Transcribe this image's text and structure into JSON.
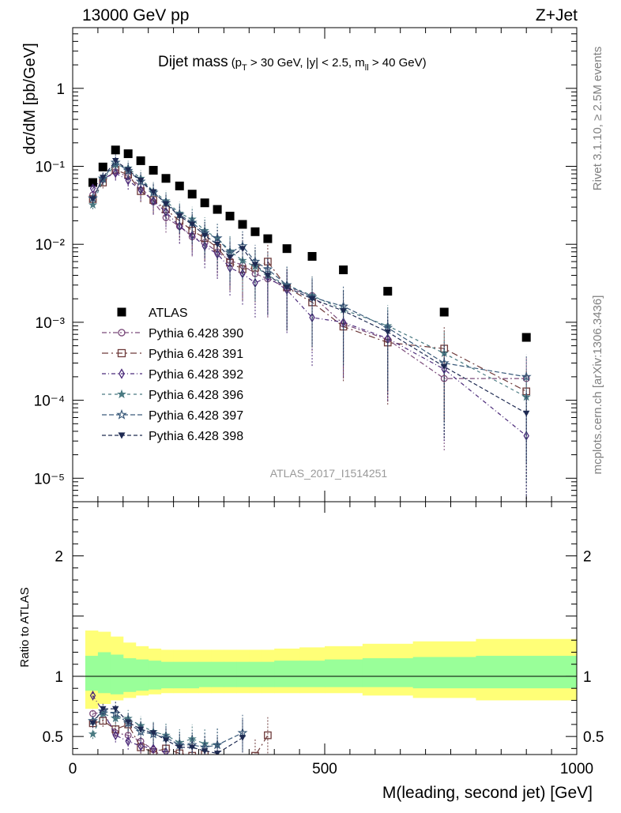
{
  "header": {
    "left": "13000 GeV pp",
    "right": "Z+Jet"
  },
  "side_labels": {
    "rivet": "Rivet 3.1.10, ≥ 2.5M events",
    "mcplots": "mcplots.cern.ch [arXiv:1306.3436]"
  },
  "title": {
    "main": "Dijet mass",
    "cond_open": "(p",
    "cond_sub1": "T",
    "cond_mid": " > 30 GeV, |y| < 2.5, m",
    "cond_sub2": "ll",
    "cond_end": " > 40 GeV)"
  },
  "watermark": "ATLAS_2017_I1514251",
  "chart_data": [
    {
      "type": "scatter",
      "panel": "main",
      "ylabel": "dσ/dM [pb/GeV]",
      "yscale": "log",
      "xlim": [
        0,
        1000
      ],
      "ylim": [
        5e-06,
        6
      ],
      "y_tick_labels": [
        "10⁻⁵",
        "10⁻⁴",
        "10⁻³",
        "10⁻²",
        "10⁻¹",
        "1"
      ],
      "legend_position": "center-left",
      "series": [
        {
          "name": "ATLAS",
          "color": "#000000",
          "marker": "square-filled",
          "x": [
            40,
            60,
            85,
            110,
            135,
            160,
            185,
            212,
            237,
            262,
            287,
            312,
            337,
            362,
            387,
            425,
            475,
            537,
            625,
            737,
            900
          ],
          "y": [
            0.062,
            0.098,
            0.162,
            0.145,
            0.118,
            0.089,
            0.07,
            0.056,
            0.044,
            0.034,
            0.028,
            0.023,
            0.018,
            0.0145,
            0.0118,
            0.0088,
            0.007,
            0.0047,
            0.0025,
            0.00135,
            0.00064
          ]
        },
        {
          "name": "Pythia 6.428 390",
          "color": "#7a4a7a",
          "marker": "circle-open",
          "x": [
            40,
            60,
            85,
            110,
            135,
            160,
            185,
            212,
            237,
            262,
            287,
            312,
            337,
            362,
            387,
            425,
            475,
            537,
            625,
            737,
            900
          ],
          "y": [
            0.043,
            0.068,
            0.085,
            0.074,
            0.055,
            0.035,
            0.022,
            0.017,
            0.0125,
            0.0105,
            0.008,
            0.0062,
            0.0054,
            0.0042,
            0.0036,
            0.0028,
            0.0022,
            0.00095,
            0.0006,
            0.00019,
            0.00019
          ]
        },
        {
          "name": "Pythia 6.428 391",
          "color": "#6e3a3a",
          "marker": "square-open",
          "x": [
            40,
            60,
            85,
            110,
            135,
            160,
            185,
            212,
            237,
            262,
            287,
            312,
            337,
            362,
            387,
            425,
            475,
            537,
            625,
            737,
            900
          ],
          "y": [
            0.038,
            0.062,
            0.09,
            0.078,
            0.048,
            0.037,
            0.028,
            0.02,
            0.015,
            0.012,
            0.009,
            0.0058,
            0.0048,
            0.005,
            0.006,
            0.0028,
            0.0018,
            0.00088,
            0.00055,
            0.00046,
            0.00013
          ]
        },
        {
          "name": "Pythia 6.428 392",
          "color": "#4b2a7a",
          "marker": "diamond-open",
          "x": [
            40,
            60,
            85,
            110,
            135,
            160,
            185,
            212,
            237,
            262,
            287,
            312,
            337,
            362,
            387,
            425,
            475,
            537,
            625,
            737,
            900
          ],
          "y": [
            0.052,
            0.07,
            0.082,
            0.066,
            0.05,
            0.036,
            0.026,
            0.017,
            0.013,
            0.0095,
            0.0075,
            0.005,
            0.0042,
            0.0032,
            0.0038,
            0.0026,
            0.00115,
            0.001,
            0.00062,
            0.00025,
            3.5e-05
          ]
        },
        {
          "name": "Pythia 6.428 396",
          "color": "#4a7a82",
          "marker": "star-filled",
          "x": [
            40,
            60,
            85,
            110,
            135,
            160,
            185,
            212,
            237,
            262,
            287,
            312,
            337,
            362,
            387,
            425,
            475,
            537,
            625,
            737,
            900
          ],
          "y": [
            0.032,
            0.068,
            0.105,
            0.095,
            0.07,
            0.048,
            0.036,
            0.025,
            0.021,
            0.015,
            0.012,
            0.0082,
            0.0062,
            0.0052,
            0.004,
            0.003,
            0.0022,
            0.00145,
            0.0009,
            0.0004,
            0.00011
          ]
        },
        {
          "name": "Pythia 6.428 397",
          "color": "#3a5a7a",
          "marker": "star-open",
          "x": [
            40,
            60,
            85,
            110,
            135,
            160,
            185,
            212,
            237,
            262,
            287,
            312,
            337,
            362,
            387,
            425,
            475,
            537,
            625,
            737,
            900
          ],
          "y": [
            0.039,
            0.07,
            0.112,
            0.088,
            0.064,
            0.046,
            0.034,
            0.024,
            0.019,
            0.014,
            0.012,
            0.0078,
            0.0095,
            0.006,
            0.0048,
            0.003,
            0.0021,
            0.0016,
            0.00085,
            0.0003,
            0.0002
          ]
        },
        {
          "name": "Pythia 6.428 398",
          "color": "#1e2a52",
          "marker": "triangle-down-filled",
          "x": [
            40,
            60,
            85,
            110,
            135,
            160,
            185,
            212,
            237,
            262,
            287,
            312,
            337,
            362,
            387,
            425,
            475,
            537,
            625,
            737,
            900
          ],
          "y": [
            0.038,
            0.072,
            0.118,
            0.09,
            0.066,
            0.047,
            0.033,
            0.023,
            0.018,
            0.013,
            0.01,
            0.0068,
            0.0088,
            0.0055,
            0.004,
            0.0028,
            0.002,
            0.0014,
            0.00075,
            0.00027,
            6.8e-05
          ]
        }
      ]
    },
    {
      "type": "line",
      "panel": "ratio",
      "ylabel": "Ratio to ATLAS",
      "xlabel": "M(leading, second jet) [GeV]",
      "xlim": [
        0,
        1000
      ],
      "ylim": [
        0.35,
        2.45
      ],
      "x_ticks": [
        0,
        500,
        1000
      ],
      "y_ticks": [
        0.5,
        1,
        2
      ],
      "band_edges": [
        25,
        50,
        75,
        100,
        125,
        150,
        175,
        200,
        225,
        250,
        275,
        300,
        325,
        350,
        375,
        400,
        450,
        500,
        575,
        675,
        800,
        1000
      ],
      "inner_band": {
        "color": "#99ff99",
        "lo": [
          0.88,
          0.86,
          0.85,
          0.87,
          0.88,
          0.89,
          0.9,
          0.9,
          0.9,
          0.91,
          0.91,
          0.91,
          0.91,
          0.91,
          0.91,
          0.91,
          0.91,
          0.91,
          0.91,
          0.9,
          0.9
        ],
        "hi": [
          1.17,
          1.2,
          1.18,
          1.15,
          1.14,
          1.13,
          1.12,
          1.12,
          1.12,
          1.12,
          1.12,
          1.12,
          1.12,
          1.12,
          1.12,
          1.13,
          1.13,
          1.14,
          1.15,
          1.16,
          1.17
        ]
      },
      "outer_band": {
        "color": "#ffff77",
        "lo": [
          0.73,
          0.77,
          0.8,
          0.82,
          0.84,
          0.85,
          0.86,
          0.86,
          0.86,
          0.86,
          0.86,
          0.86,
          0.86,
          0.86,
          0.86,
          0.86,
          0.86,
          0.86,
          0.84,
          0.82,
          0.8
        ],
        "hi": [
          1.38,
          1.37,
          1.33,
          1.28,
          1.25,
          1.23,
          1.22,
          1.22,
          1.22,
          1.22,
          1.22,
          1.22,
          1.22,
          1.22,
          1.22,
          1.23,
          1.24,
          1.25,
          1.27,
          1.29,
          1.31
        ]
      },
      "series": [
        {
          "name": "Pythia 6.428 390",
          "x": [
            40,
            60,
            85,
            110,
            135,
            160,
            185,
            212,
            237,
            262,
            287
          ],
          "y": [
            0.69,
            0.7,
            0.53,
            0.51,
            0.46,
            0.39,
            0.31,
            0.3,
            0.28,
            0.3,
            0.28
          ]
        },
        {
          "name": "Pythia 6.428 391",
          "x": [
            40,
            60,
            85,
            110,
            135,
            160,
            185,
            212,
            237,
            262,
            362,
            387
          ],
          "y": [
            0.61,
            0.63,
            0.56,
            0.6,
            0.41,
            0.37,
            0.4,
            0.36,
            0.34,
            0.35,
            0.34,
            0.51
          ]
        },
        {
          "name": "Pythia 6.428 392",
          "x": [
            40,
            60,
            85,
            110,
            135,
            160,
            185,
            212,
            237,
            262,
            287
          ],
          "y": [
            0.84,
            0.71,
            0.51,
            0.46,
            0.42,
            0.4,
            0.37,
            0.3,
            0.3,
            0.28,
            0.27
          ]
        },
        {
          "name": "Pythia 6.428 396",
          "x": [
            40,
            60,
            85,
            110,
            135,
            160,
            185,
            212,
            237,
            262,
            287
          ],
          "y": [
            0.52,
            0.69,
            0.65,
            0.65,
            0.59,
            0.54,
            0.51,
            0.45,
            0.48,
            0.44,
            0.43
          ]
        },
        {
          "name": "Pythia 6.428 397",
          "x": [
            40,
            60,
            85,
            110,
            135,
            160,
            185,
            212,
            237,
            262,
            287,
            337
          ],
          "y": [
            0.63,
            0.71,
            0.69,
            0.61,
            0.54,
            0.52,
            0.49,
            0.43,
            0.43,
            0.41,
            0.43,
            0.53
          ]
        },
        {
          "name": "Pythia 6.428 398",
          "x": [
            40,
            60,
            85,
            110,
            135,
            160,
            185,
            212,
            237,
            262,
            287,
            337
          ],
          "y": [
            0.61,
            0.73,
            0.73,
            0.62,
            0.56,
            0.53,
            0.47,
            0.41,
            0.41,
            0.38,
            0.36,
            0.49
          ]
        }
      ]
    }
  ]
}
